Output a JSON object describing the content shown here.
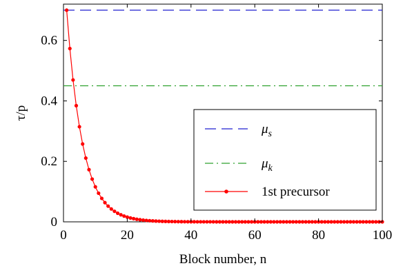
{
  "chart_data": {
    "type": "line",
    "xlabel": "Block number, n",
    "ylabel": "τ/p",
    "xlim": [
      0,
      100
    ],
    "ylim": [
      0,
      0.72
    ],
    "xticks": [
      0,
      20,
      40,
      60,
      80,
      100
    ],
    "yticks": [
      0,
      0.2,
      0.4,
      0.6
    ],
    "xtick_labels": [
      "0",
      "20",
      "40",
      "60",
      "80",
      "100"
    ],
    "ytick_labels": [
      "0",
      "0.2",
      "0.4",
      "0.6"
    ],
    "grid": false,
    "legend_position": "bottom-right",
    "series": [
      {
        "name": "μs",
        "style": "dashed",
        "color": "#1f1fd0",
        "x": [
          0,
          100
        ],
        "y": [
          0.7,
          0.7
        ]
      },
      {
        "name": "μk",
        "style": "dash-dot",
        "color": "#2ca02c",
        "x": [
          0,
          100
        ],
        "y": [
          0.45,
          0.45
        ]
      },
      {
        "name": "1st precursor",
        "style": "solid-markers",
        "color": "#ff0000",
        "x_start": 1,
        "x_end": 100,
        "x_step": 1,
        "y_initial": 0.7,
        "decay_rate": 0.2
      }
    ]
  }
}
